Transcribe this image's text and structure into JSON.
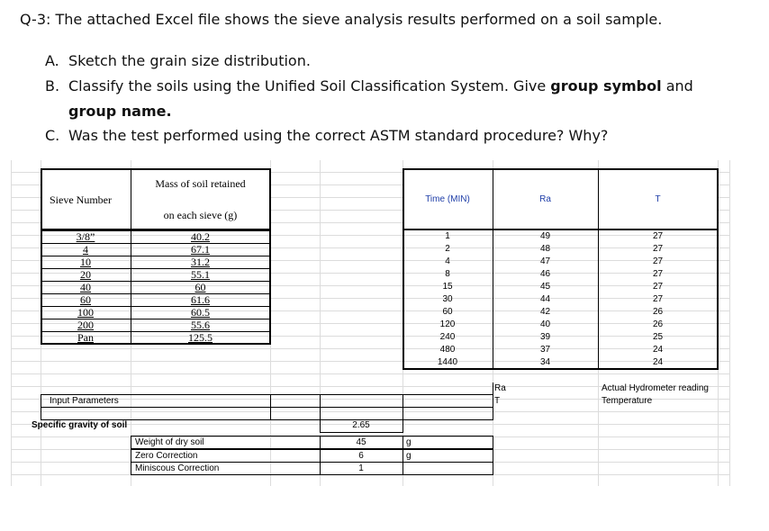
{
  "question": {
    "text": "Q-3: The attached Excel file shows the sieve analysis results performed on a soil sample."
  },
  "tasks": [
    {
      "marker": "A.",
      "text": "Sketch the grain size distribution."
    },
    {
      "marker": "B.",
      "text": "Classify the soils using the Unified Soil Classification System. Give",
      "emphasis_1": "group symbol",
      "joiner": "and",
      "emphasis_2": "group name."
    },
    {
      "marker": "C.",
      "text": "Was the test performed using the correct ASTM standard procedure? Why?"
    }
  ],
  "sieve_table": {
    "headers": [
      "Sieve Number",
      "Mass of soil retained",
      "on each sieve (g)"
    ],
    "rows": [
      [
        "3/8”",
        40.2
      ],
      [
        "4",
        67.1
      ],
      [
        "10",
        31.2
      ],
      [
        "20",
        55.1
      ],
      [
        "40",
        60
      ],
      [
        "60",
        61.6
      ],
      [
        "100",
        60.5
      ],
      [
        "200",
        55.6
      ],
      [
        "Pan",
        125.5
      ]
    ]
  },
  "hydrometer_table": {
    "headers": [
      "Time (MIN)",
      "Ra",
      "T"
    ],
    "rows": [
      [
        1,
        49,
        27
      ],
      [
        2,
        48,
        27
      ],
      [
        4,
        47,
        27
      ],
      [
        8,
        46,
        27
      ],
      [
        15,
        45,
        27
      ],
      [
        30,
        44,
        27
      ],
      [
        60,
        42,
        26
      ],
      [
        120,
        40,
        26
      ],
      [
        240,
        39,
        25
      ],
      [
        480,
        37,
        24
      ],
      [
        1440,
        34,
        24
      ]
    ]
  },
  "legend": [
    {
      "symbol": "Ra",
      "meaning": "Actual Hydrometer reading"
    },
    {
      "symbol": "T",
      "meaning": "Temperature"
    }
  ],
  "input_parameters": {
    "title": "Input Parameters",
    "specific_gravity": {
      "label": "Specific gravity of soil",
      "value": 2.65
    },
    "rows": [
      {
        "label": "Weight of dry soil",
        "value": 45,
        "unit": "g"
      },
      {
        "label": "Zero Correction",
        "value": 6,
        "unit": "g"
      },
      {
        "label": "Miniscous Correction",
        "value": 1
      }
    ]
  }
}
